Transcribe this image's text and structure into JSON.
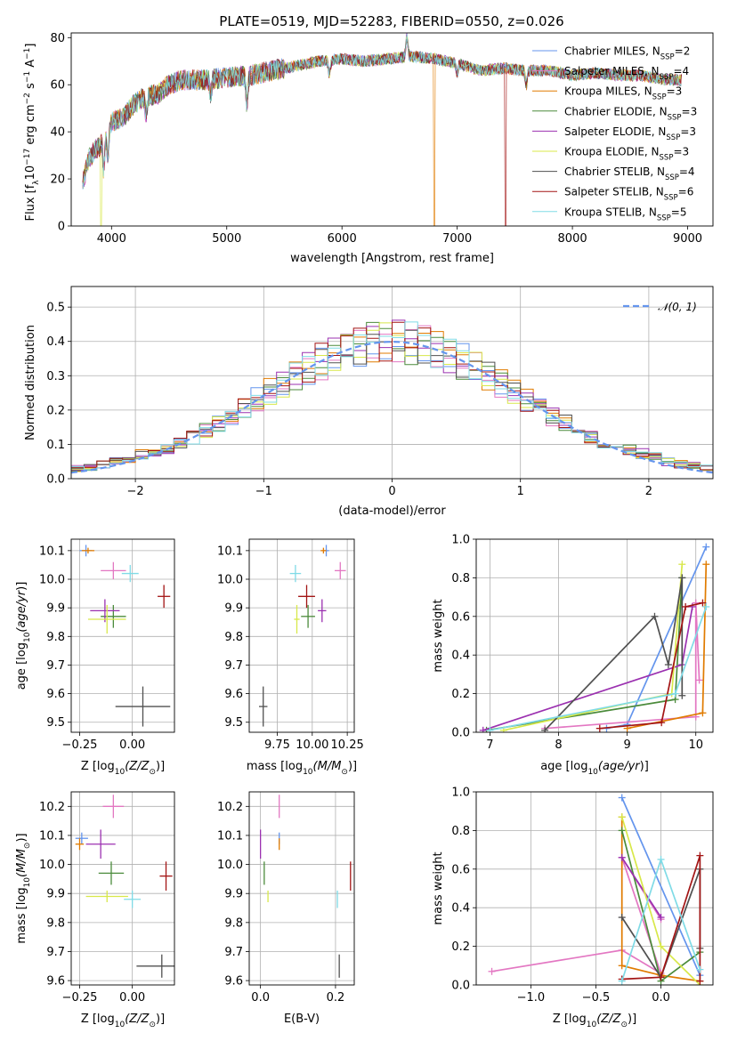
{
  "figure": {
    "title": "PLATE=0519, MJD=52283, FIBERID=0550, z=0.026"
  },
  "colors": {
    "Chabrier MILES": "#6495ed",
    "Salpeter MILES": "#e377c2",
    "Kroupa MILES": "#e07b00",
    "Chabrier ELODIE": "#4b8b3b",
    "Salpeter ELODIE": "#9b30b0",
    "Kroupa ELODIE": "#d8e84a",
    "Chabrier STELIB": "#505050",
    "Salpeter STELIB": "#a31515",
    "Kroupa STELIB": "#80dbe6"
  },
  "models": [
    {
      "key": "Chabrier MILES",
      "label": "Chabrier MILES, N",
      "nssp": "=2"
    },
    {
      "key": "Salpeter MILES",
      "label": "Salpeter MILES, N",
      "nssp": "=4"
    },
    {
      "key": "Kroupa MILES",
      "label": "Kroupa MILES, N",
      "nssp": "=3"
    },
    {
      "key": "Chabrier ELODIE",
      "label": "Chabrier ELODIE, N",
      "nssp": "=3"
    },
    {
      "key": "Salpeter ELODIE",
      "label": "Salpeter ELODIE, N",
      "nssp": "=3"
    },
    {
      "key": "Kroupa ELODIE",
      "label": "Kroupa ELODIE, N",
      "nssp": "=3"
    },
    {
      "key": "Chabrier STELIB",
      "label": "Chabrier STELIB, N",
      "nssp": "=4"
    },
    {
      "key": "Salpeter STELIB",
      "label": "Salpeter STELIB, N",
      "nssp": "=6"
    },
    {
      "key": "Kroupa STELIB",
      "label": "Kroupa STELIB, N",
      "nssp": "=5"
    }
  ],
  "chart_data": [
    {
      "id": "spectrum",
      "type": "line",
      "xlabel": "wavelength [Angstrom, rest frame]",
      "ylabel": "Flux [f",
      "ylabel_full": "Flux [f_λ 10^-17 erg cm^-2 s^-1 A^-1]",
      "xlim": [
        3650,
        9220
      ],
      "ylim": [
        0,
        82
      ],
      "xticks": [
        4000,
        5000,
        6000,
        7000,
        8000,
        9000
      ],
      "yticks": [
        0,
        20,
        40,
        60,
        80
      ],
      "continuum": [
        [
          3750,
          18
        ],
        [
          3800,
          28
        ],
        [
          3850,
          32
        ],
        [
          3900,
          34
        ],
        [
          3950,
          40
        ],
        [
          4000,
          44
        ],
        [
          4100,
          46
        ],
        [
          4200,
          52
        ],
        [
          4300,
          55
        ],
        [
          4400,
          56
        ],
        [
          4500,
          60
        ],
        [
          4600,
          62
        ],
        [
          4800,
          62
        ],
        [
          5000,
          63
        ],
        [
          5200,
          64
        ],
        [
          5400,
          66
        ],
        [
          5600,
          68
        ],
        [
          5800,
          70
        ],
        [
          6000,
          71
        ],
        [
          6200,
          70
        ],
        [
          6400,
          71
        ],
        [
          6600,
          72
        ],
        [
          6800,
          71
        ],
        [
          7000,
          69
        ],
        [
          7200,
          66
        ],
        [
          7400,
          67
        ],
        [
          7600,
          66
        ],
        [
          7800,
          66
        ],
        [
          8000,
          64
        ],
        [
          8200,
          65
        ],
        [
          8400,
          64
        ],
        [
          8600,
          64
        ],
        [
          8800,
          62
        ],
        [
          8950,
          62
        ]
      ],
      "features": [
        [
          3933,
          -14
        ],
        [
          3968,
          -12
        ],
        [
          4300,
          -8
        ],
        [
          4861,
          -6
        ],
        [
          5175,
          -12
        ],
        [
          5890,
          -6
        ],
        [
          6563,
          8
        ],
        [
          7000,
          -4
        ],
        [
          7600,
          -6
        ]
      ],
      "drops": [
        {
          "model": "Kroupa ELODIE",
          "x": 3910
        },
        {
          "model": "Kroupa MILES",
          "x": 6800
        },
        {
          "model": "Salpeter STELIB",
          "x": 7420
        }
      ]
    },
    {
      "id": "residuals",
      "type": "histogram",
      "xlabel": "(data-model)/error",
      "ylabel": "Normed distribution",
      "xlim": [
        -2.5,
        2.5
      ],
      "ylim": [
        0,
        0.56
      ],
      "xticks": [
        -2,
        -1,
        0,
        1,
        2
      ],
      "xtick_labels": [
        "−2",
        "−1",
        "0",
        "1",
        "2"
      ],
      "yticks": [
        0.0,
        0.1,
        0.2,
        0.3,
        0.4,
        0.5
      ],
      "ytick_labels": [
        "0.0",
        "0.1",
        "0.2",
        "0.3",
        "0.4",
        "0.5"
      ],
      "bin_width": 0.1,
      "reference_curve": "normal(0,1)",
      "legend": "𝒩(0, 1)"
    },
    {
      "id": "age_vs_Z",
      "type": "scatter",
      "xlabel": "Z [log",
      "ylabel": "age  [log",
      "xlim": [
        -0.29,
        0.2
      ],
      "ylim": [
        9.465,
        10.14
      ],
      "xticks": [
        -0.25,
        0.0
      ],
      "xtick_labels": [
        "−0.25",
        "0.00"
      ],
      "yticks": [
        9.5,
        9.6,
        9.7,
        9.8,
        9.9,
        10.0,
        10.1
      ],
      "points": [
        {
          "model": "Chabrier MILES",
          "x": -0.22,
          "y": 10.1,
          "xerr": 0.03,
          "yerr": 0.02
        },
        {
          "model": "Salpeter MILES",
          "x": -0.09,
          "y": 10.03,
          "xerr": 0.06,
          "yerr": 0.03
        },
        {
          "model": "Kroupa MILES",
          "x": -0.21,
          "y": 10.1,
          "xerr": 0.03,
          "yerr": 0.01
        },
        {
          "model": "Chabrier ELODIE",
          "x": -0.09,
          "y": 9.87,
          "xerr": 0.06,
          "yerr": 0.04
        },
        {
          "model": "Salpeter ELODIE",
          "x": -0.13,
          "y": 9.89,
          "xerr": 0.07,
          "yerr": 0.04
        },
        {
          "model": "Kroupa ELODIE",
          "x": -0.12,
          "y": 9.86,
          "xerr": 0.09,
          "yerr": 0.05
        },
        {
          "model": "Chabrier STELIB",
          "x": 0.05,
          "y": 9.555,
          "xerr": 0.13,
          "yerr": 0.07
        },
        {
          "model": "Salpeter STELIB",
          "x": 0.15,
          "y": 9.94,
          "xerr": 0.03,
          "yerr": 0.04
        },
        {
          "model": "Kroupa STELIB",
          "x": -0.01,
          "y": 10.02,
          "xerr": 0.04,
          "yerr": 0.03
        }
      ]
    },
    {
      "id": "age_vs_mass",
      "type": "scatter",
      "xlabel": "mass [log",
      "xlim": [
        9.55,
        10.3
      ],
      "ylim": [
        9.465,
        10.14
      ],
      "xticks": [
        9.75,
        10.0,
        10.25
      ],
      "xtick_labels": [
        "9.75",
        "10.00",
        "10.25"
      ],
      "yticks": [
        9.5,
        9.6,
        9.7,
        9.8,
        9.9,
        10.0,
        10.1
      ],
      "points": [
        {
          "model": "Chabrier MILES",
          "x": 10.1,
          "y": 10.1,
          "xerr": 0.02,
          "yerr": 0.02
        },
        {
          "model": "Salpeter MILES",
          "x": 10.2,
          "y": 10.03,
          "xerr": 0.04,
          "yerr": 0.03
        },
        {
          "model": "Kroupa MILES",
          "x": 10.08,
          "y": 10.1,
          "xerr": 0.02,
          "yerr": 0.01
        },
        {
          "model": "Chabrier ELODIE",
          "x": 9.97,
          "y": 9.87,
          "xerr": 0.05,
          "yerr": 0.04
        },
        {
          "model": "Salpeter ELODIE",
          "x": 10.07,
          "y": 9.89,
          "xerr": 0.03,
          "yerr": 0.04
        },
        {
          "model": "Kroupa ELODIE",
          "x": 9.89,
          "y": 9.86,
          "xerr": 0.02,
          "yerr": 0.05
        },
        {
          "model": "Chabrier STELIB",
          "x": 9.65,
          "y": 9.555,
          "xerr": 0.03,
          "yerr": 0.07
        },
        {
          "model": "Salpeter STELIB",
          "x": 9.96,
          "y": 9.94,
          "xerr": 0.06,
          "yerr": 0.04
        },
        {
          "model": "Kroupa STELIB",
          "x": 9.88,
          "y": 10.02,
          "xerr": 0.04,
          "yerr": 0.03
        }
      ]
    },
    {
      "id": "massweight_vs_age",
      "type": "line",
      "xlabel": "age  [log",
      "ylabel": "mass weight",
      "xlim": [
        6.8,
        10.25
      ],
      "ylim": [
        0,
        1
      ],
      "xticks": [
        7,
        8,
        9,
        10
      ],
      "yticks": [
        0.0,
        0.2,
        0.4,
        0.6,
        0.8,
        1.0
      ],
      "ytick_labels": [
        "0.0",
        "0.2",
        "0.4",
        "0.6",
        "0.8",
        "1.0"
      ],
      "series": [
        {
          "model": "Chabrier MILES",
          "points": [
            [
              8.7,
              0.02
            ],
            [
              9.0,
              0.04
            ],
            [
              10.15,
              0.96
            ]
          ]
        },
        {
          "model": "Salpeter MILES",
          "points": [
            [
              7.8,
              0.02
            ],
            [
              10.0,
              0.08
            ],
            [
              10.0,
              0.67
            ],
            [
              10.05,
              0.27
            ]
          ]
        },
        {
          "model": "Kroupa MILES",
          "points": [
            [
              9.0,
              0.02
            ],
            [
              10.1,
              0.1
            ],
            [
              10.15,
              0.87
            ]
          ]
        },
        {
          "model": "Chabrier ELODIE",
          "points": [
            [
              6.95,
              0.01
            ],
            [
              9.7,
              0.17
            ],
            [
              9.8,
              0.8
            ]
          ]
        },
        {
          "model": "Salpeter ELODIE",
          "points": [
            [
              6.9,
              0.01
            ],
            [
              9.8,
              0.35
            ],
            [
              9.95,
              0.65
            ]
          ]
        },
        {
          "model": "Kroupa ELODIE",
          "points": [
            [
              7.2,
              0.01
            ],
            [
              9.65,
              0.2
            ],
            [
              9.8,
              0.87
            ]
          ]
        },
        {
          "model": "Chabrier STELIB",
          "points": [
            [
              7.8,
              0.01
            ],
            [
              9.4,
              0.6
            ],
            [
              9.6,
              0.35
            ],
            [
              9.8,
              0.8
            ],
            [
              9.8,
              0.19
            ]
          ]
        },
        {
          "model": "Salpeter STELIB",
          "points": [
            [
              8.6,
              0.02
            ],
            [
              9.5,
              0.05
            ],
            [
              9.85,
              0.65
            ],
            [
              10.1,
              0.67
            ]
          ]
        },
        {
          "model": "Kroupa STELIB",
          "points": [
            [
              7.0,
              0.01
            ],
            [
              9.7,
              0.2
            ],
            [
              10.15,
              0.65
            ]
          ]
        }
      ]
    },
    {
      "id": "mass_vs_Z",
      "type": "scatter",
      "xlabel": "Z [log",
      "ylabel": "mass [log",
      "xlim": [
        -0.29,
        0.2
      ],
      "ylim": [
        9.585,
        10.25
      ],
      "xticks": [
        -0.25,
        0.0
      ],
      "xtick_labels": [
        "−0.25",
        "0.00"
      ],
      "yticks": [
        9.6,
        9.7,
        9.8,
        9.9,
        10.0,
        10.1,
        10.2
      ],
      "points": [
        {
          "model": "Chabrier MILES",
          "x": -0.24,
          "y": 10.09,
          "xerr": 0.03,
          "yerr": 0.02
        },
        {
          "model": "Salpeter MILES",
          "x": -0.09,
          "y": 10.2,
          "xerr": 0.05,
          "yerr": 0.04
        },
        {
          "model": "Kroupa MILES",
          "x": -0.25,
          "y": 10.07,
          "xerr": 0.02,
          "yerr": 0.02
        },
        {
          "model": "Chabrier ELODIE",
          "x": -0.1,
          "y": 9.97,
          "xerr": 0.06,
          "yerr": 0.04
        },
        {
          "model": "Salpeter ELODIE",
          "x": -0.15,
          "y": 10.07,
          "xerr": 0.07,
          "yerr": 0.05
        },
        {
          "model": "Kroupa ELODIE",
          "x": -0.12,
          "y": 9.89,
          "xerr": 0.1,
          "yerr": 0.02
        },
        {
          "model": "Chabrier STELIB",
          "x": 0.14,
          "y": 9.65,
          "xerr": 0.12,
          "yerr": 0.04
        },
        {
          "model": "Salpeter STELIB",
          "x": 0.16,
          "y": 9.96,
          "xerr": 0.03,
          "yerr": 0.05
        },
        {
          "model": "Kroupa STELIB",
          "x": 0.0,
          "y": 9.88,
          "xerr": 0.04,
          "yerr": 0.03
        }
      ]
    },
    {
      "id": "mass_vs_EBV",
      "type": "scatter",
      "xlabel": "E(B-V)",
      "xlim": [
        -0.03,
        0.25
      ],
      "ylim": [
        9.585,
        10.25
      ],
      "xticks": [
        0.0,
        0.2
      ],
      "xtick_labels": [
        "0.0",
        "0.2"
      ],
      "yticks": [
        9.6,
        9.7,
        9.8,
        9.9,
        10.0,
        10.1,
        10.2
      ],
      "points": [
        {
          "model": "Chabrier MILES",
          "x": 0.05,
          "y": 10.09,
          "xerr": 0,
          "yerr": 0.02
        },
        {
          "model": "Salpeter MILES",
          "x": 0.05,
          "y": 10.2,
          "xerr": 0,
          "yerr": 0.04
        },
        {
          "model": "Kroupa MILES",
          "x": 0.05,
          "y": 10.07,
          "xerr": 0,
          "yerr": 0.02
        },
        {
          "model": "Chabrier ELODIE",
          "x": 0.01,
          "y": 9.97,
          "xerr": 0,
          "yerr": 0.04
        },
        {
          "model": "Salpeter ELODIE",
          "x": 0.0,
          "y": 10.07,
          "xerr": 0,
          "yerr": 0.05
        },
        {
          "model": "Kroupa ELODIE",
          "x": 0.02,
          "y": 9.89,
          "xerr": 0,
          "yerr": 0.02
        },
        {
          "model": "Chabrier STELIB",
          "x": 0.21,
          "y": 9.65,
          "xerr": 0,
          "yerr": 0.04
        },
        {
          "model": "Salpeter STELIB",
          "x": 0.24,
          "y": 9.96,
          "xerr": 0,
          "yerr": 0.05
        },
        {
          "model": "Kroupa STELIB",
          "x": 0.205,
          "y": 9.88,
          "xerr": 0,
          "yerr": 0.03
        }
      ]
    },
    {
      "id": "massweight_vs_Z",
      "type": "line",
      "xlabel": "Z [log",
      "ylabel": "mass weight",
      "xlim": [
        -1.42,
        0.4
      ],
      "ylim": [
        0,
        1
      ],
      "xticks": [
        -1.0,
        -0.5,
        0.0
      ],
      "xtick_labels": [
        "−1.0",
        "−0.5",
        "0.0"
      ],
      "yticks": [
        0.0,
        0.2,
        0.4,
        0.6,
        0.8,
        1.0
      ],
      "ytick_labels": [
        "0.0",
        "0.2",
        "0.4",
        "0.6",
        "0.8",
        "1.0"
      ],
      "series": [
        {
          "model": "Chabrier MILES",
          "points": [
            [
              -0.3,
              0.97
            ],
            [
              0.3,
              0.05
            ]
          ]
        },
        {
          "model": "Salpeter MILES",
          "points": [
            [
              -1.3,
              0.07
            ],
            [
              -0.3,
              0.18
            ],
            [
              0.0,
              0.06
            ],
            [
              -0.3,
              0.66
            ],
            [
              0.0,
              0.34
            ]
          ]
        },
        {
          "model": "Kroupa MILES",
          "points": [
            [
              -0.3,
              0.87
            ],
            [
              -0.3,
              0.1
            ],
            [
              0.0,
              0.05
            ],
            [
              0.3,
              0.02
            ]
          ]
        },
        {
          "model": "Chabrier ELODIE",
          "points": [
            [
              -0.3,
              0.8
            ],
            [
              0.0,
              0.02
            ],
            [
              0.3,
              0.17
            ]
          ]
        },
        {
          "model": "Salpeter ELODIE",
          "points": [
            [
              -0.3,
              0.66
            ],
            [
              0.0,
              0.35
            ]
          ]
        },
        {
          "model": "Kroupa ELODIE",
          "points": [
            [
              -0.3,
              0.87
            ],
            [
              0.0,
              0.2
            ],
            [
              0.3,
              0.0
            ]
          ]
        },
        {
          "model": "Chabrier STELIB",
          "points": [
            [
              -0.3,
              0.35
            ],
            [
              0.0,
              0.04
            ],
            [
              0.3,
              0.6
            ],
            [
              0.3,
              0.19
            ]
          ]
        },
        {
          "model": "Salpeter STELIB",
          "points": [
            [
              -0.3,
              0.03
            ],
            [
              0.0,
              0.04
            ],
            [
              0.3,
              0.67
            ],
            [
              0.3,
              0.02
            ]
          ]
        },
        {
          "model": "Kroupa STELIB",
          "points": [
            [
              -0.3,
              0.02
            ],
            [
              0.0,
              0.65
            ],
            [
              0.3,
              0.08
            ]
          ]
        }
      ]
    }
  ]
}
